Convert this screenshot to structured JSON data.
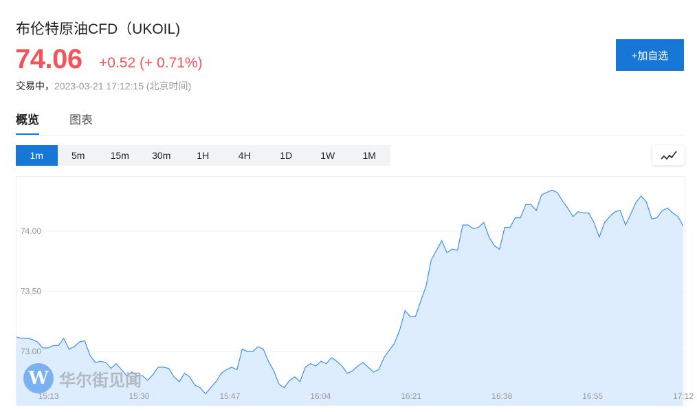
{
  "header": {
    "title": "布伦特原油CFD（UKOIL)",
    "price": "74.06",
    "change": "+0.52 (+ 0.71%)",
    "status": "交易中，",
    "timestamp": "2023-03-21 17:12:15 (北京时间)",
    "add_watchlist": "+加自选"
  },
  "tabs": [
    {
      "label": "概览",
      "active": true
    },
    {
      "label": "图表",
      "active": false
    }
  ],
  "periods": [
    {
      "label": "1m",
      "active": true
    },
    {
      "label": "5m"
    },
    {
      "label": "15m"
    },
    {
      "label": "30m"
    },
    {
      "label": "1H"
    },
    {
      "label": "4H"
    },
    {
      "label": "1D"
    },
    {
      "label": "1W"
    },
    {
      "label": "1M"
    }
  ],
  "chart_type_icon": "line-chart-icon",
  "watermark": {
    "text": "华尔街见闻",
    "logo": "W"
  },
  "colors": {
    "up": "#f5535a",
    "accent": "#1677d6",
    "line": "#3d8ff0",
    "fill": "#deedfd"
  },
  "chart_data": {
    "type": "area",
    "y_ticks": [
      "73.00",
      "73.50",
      "74.00"
    ],
    "y_tick_values": [
      73.0,
      73.5,
      74.0
    ],
    "ylim": [
      72.55,
      74.45
    ],
    "x_ticks": [
      "15:13",
      "15:30",
      "15:47",
      "16:04",
      "16:21",
      "16:38",
      "16:55",
      "17:12"
    ],
    "x_start": "15:07",
    "x_end": "17:12",
    "grid": "horizontal",
    "values": [
      73.12,
      73.11,
      73.11,
      73.1,
      73.08,
      73.03,
      73.03,
      73.05,
      73.05,
      73.11,
      73.02,
      73.04,
      73.08,
      73.09,
      72.97,
      72.91,
      72.92,
      72.91,
      72.86,
      72.9,
      72.85,
      72.8,
      72.83,
      72.8,
      72.8,
      72.76,
      72.81,
      72.87,
      72.87,
      72.86,
      72.79,
      72.75,
      72.82,
      72.79,
      72.72,
      72.7,
      72.65,
      72.7,
      72.75,
      72.82,
      72.85,
      72.87,
      72.85,
      73.02,
      73.0,
      73.0,
      73.04,
      73.02,
      72.92,
      72.84,
      72.73,
      72.7,
      72.76,
      72.79,
      72.75,
      72.87,
      72.9,
      72.88,
      72.92,
      72.9,
      72.95,
      72.92,
      72.88,
      72.82,
      72.84,
      72.88,
      72.91,
      72.87,
      72.83,
      72.85,
      72.95,
      73.01,
      73.07,
      73.18,
      73.34,
      73.29,
      73.29,
      73.42,
      73.54,
      73.76,
      73.84,
      73.92,
      73.82,
      73.85,
      73.84,
      74.05,
      74.05,
      74.02,
      74.03,
      74.07,
      73.95,
      73.88,
      73.85,
      74.03,
      74.03,
      74.11,
      74.11,
      74.22,
      74.22,
      74.17,
      74.3,
      74.32,
      74.34,
      74.32,
      74.25,
      74.19,
      74.12,
      74.16,
      74.15,
      74.15,
      74.07,
      73.95,
      74.07,
      74.12,
      74.16,
      74.17,
      74.05,
      74.14,
      74.24,
      74.29,
      74.24,
      74.1,
      74.11,
      74.17,
      74.19,
      74.15,
      74.12,
      74.04
    ]
  }
}
